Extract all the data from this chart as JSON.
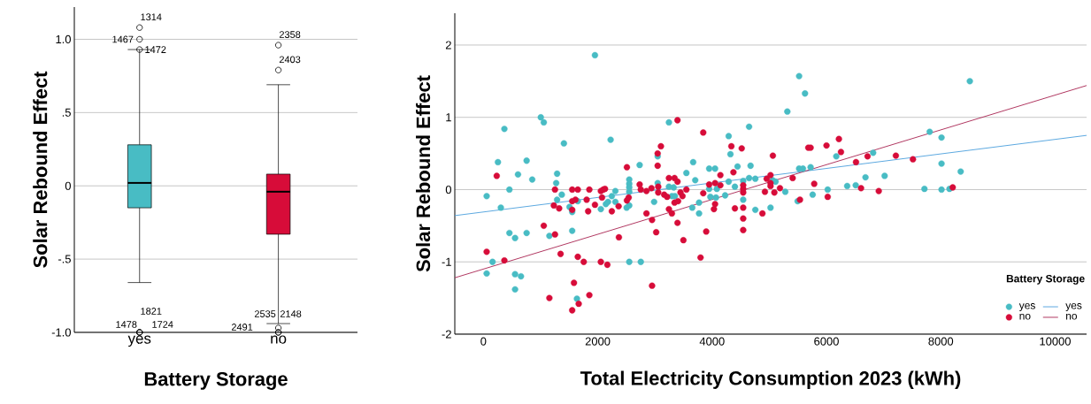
{
  "chart_data": [
    {
      "type": "box",
      "xlabel": "Battery Storage",
      "ylabel": "Solar Rebound Effect",
      "categories": [
        "yes",
        "no"
      ],
      "colors": [
        "#48bcc4",
        "#d70c39"
      ],
      "boxes": [
        {
          "low": -0.66,
          "q1": -0.15,
          "median": 0.02,
          "q3": 0.28,
          "high": 0.93,
          "outliers": [
            1.08,
            1.0,
            0.93,
            -1.0,
            -1.0,
            -1.0
          ]
        },
        {
          "low": -0.94,
          "q1": -0.33,
          "median": -0.04,
          "q3": 0.08,
          "high": 0.69,
          "outliers": [
            0.96,
            0.79,
            -0.97,
            -1.0,
            -1.0
          ]
        }
      ],
      "ylim": [
        -1.0,
        1.22
      ],
      "yticks": [
        {
          "value": -1.0,
          "label": "-1.0"
        },
        {
          "value": -0.5,
          "label": "-.5"
        },
        0,
        {
          "value": 0.5,
          "label": ".5"
        },
        {
          "value": 1.0,
          "label": "1.0"
        }
      ],
      "grid": "y",
      "annotations": [
        "1314",
        "1467",
        "1472",
        "1821",
        "1478",
        "1724",
        "2358",
        "2403",
        "2535",
        "2148",
        "2491"
      ]
    },
    {
      "type": "scatter",
      "xlabel": "Total Electricity Consumption 2023 (kWh)",
      "ylabel": "Solar Rebound Effect",
      "xlim": [
        -500,
        10550
      ],
      "ylim": [
        -2,
        2.44
      ],
      "xticks": [
        0,
        2000,
        4000,
        6000,
        8000,
        10000
      ],
      "yticks": [
        -2,
        -1,
        0,
        1,
        2
      ],
      "grid": "y",
      "legend": "bottom right",
      "legend_title": "Battery Storage",
      "series": [
        {
          "name": "yes",
          "color": "#48bcc4",
          "x": [
            57,
            254,
            367,
            305,
            455,
            160,
            57,
            455,
            554,
            605,
            554,
            554,
            657,
            756,
            756,
            854,
            1004,
            1056,
            1154,
            1289,
            1273,
            1289,
            1371,
            1408,
            1506,
            1553,
            1553,
            1636,
            1651,
            1951,
            2054,
            2142,
            2179,
            2225,
            2246,
            2308,
            2308,
            2505,
            2551,
            2551,
            2551,
            2551,
            2551,
            2551,
            2733,
            2753,
            2986,
            3048,
            3048,
            3245,
            3245,
            3328,
            3297,
            3349,
            3550,
            3669,
            3705,
            3653,
            3772,
            3772,
            3949,
            4052,
            3949,
            3969,
            4068,
            4083,
            4228,
            4290,
            4321,
            4290,
            4399,
            4445,
            4544,
            4544,
            4647,
            4647,
            4673,
            4756,
            4756,
            5022,
            5059,
            5110,
            5280,
            5316,
            5496,
            5522,
            5522,
            5589,
            5625,
            5723,
            5759,
            6022,
            6172,
            6363,
            6512,
            6683,
            6817,
            7018,
            7714,
            7806,
            8013,
            8013,
            8013,
            8152,
            8348,
            8508
          ],
          "values": [
            -0.09,
            0.38,
            0.84,
            -0.25,
            0,
            -1.0,
            -1.16,
            -0.6,
            -0.67,
            0.21,
            -1.17,
            -1.38,
            -1.2,
            0.4,
            -0.6,
            0.14,
            1.0,
            0.93,
            -0.64,
            0.22,
            0.09,
            -0.14,
            -0.07,
            0.64,
            -0.24,
            -0.31,
            -0.57,
            -1.51,
            -0.16,
            1.86,
            -0.27,
            -0.2,
            -0.17,
            0.69,
            -0.09,
            -0.02,
            -0.17,
            -0.25,
            -0.22,
            0.14,
            0.08,
            0.03,
            -0.03,
            -1.0,
            0.34,
            -1.0,
            -0.17,
            0.46,
            0.09,
            0.93,
            0.04,
            0.03,
            -0.09,
            -0.09,
            0.23,
            0.38,
            0.13,
            -0.25,
            -0.18,
            -0.33,
            0.29,
            0.29,
            0.01,
            -0.1,
            -0.11,
            0.01,
            -0.08,
            0.74,
            0.49,
            0.11,
            0.04,
            0.32,
            0.12,
            -0.14,
            0.87,
            0.16,
            0.33,
            0.15,
            -0.28,
            -0.25,
            0.13,
            0.11,
            -0.03,
            1.08,
            -0.16,
            1.57,
            0.29,
            0.29,
            1.33,
            0.31,
            -0.07,
            0,
            0.46,
            0.05,
            0.06,
            0.17,
            0.51,
            0.19,
            0.01,
            0.8,
            0.72,
            0.36,
            0,
            0.01,
            0.25,
            1.5
          ]
        },
        {
          "name": "no",
          "color": "#d70c39",
          "x": [
            57,
            233,
            367,
            1056,
            1154,
            1252,
            1232,
            1325,
            1252,
            1350,
            1553,
            1553,
            1553,
            1553,
            1584,
            1610,
            1651,
            1651,
            1667,
            1755,
            1806,
            1832,
            1853,
            1853,
            1951,
            2054,
            2054,
            2075,
            2096,
            2127,
            2168,
            2246,
            2365,
            2370,
            2510,
            2510,
            2541,
            2733,
            2753,
            2852,
            2852,
            2940,
            2950,
            2950,
            3022,
            3048,
            3048,
            3058,
            3058,
            3105,
            3162,
            3213,
            3245,
            3245,
            3297,
            3343,
            3395,
            3395,
            3343,
            3405,
            3395,
            3447,
            3483,
            3498,
            3550,
            3798,
            3845,
            3845,
            3897,
            3949,
            4032,
            4052,
            4052,
            4145,
            4145,
            4337,
            4373,
            4399,
            4518,
            4544,
            4544,
            4544,
            4544,
            4544,
            4544,
            4880,
            4924,
            4955,
            5022,
            5022,
            5022,
            5063,
            5089,
            5187,
            5409,
            5537,
            5682,
            5723,
            5786,
            6001,
            6022,
            6218,
            6254,
            6517,
            6605,
            6719,
            6915,
            7214,
            7513,
            8209
          ],
          "values": [
            -0.86,
            0.19,
            -0.98,
            -0.5,
            -1.5,
            0,
            -0.22,
            -0.26,
            -0.62,
            -0.89,
            0,
            -0.16,
            -0.28,
            -1.67,
            -1.29,
            -0.14,
            0,
            -0.93,
            -1.58,
            -1.0,
            -0.14,
            -0.3,
            0,
            -1.46,
            -0.21,
            -0.02,
            -1.0,
            -0.11,
            0,
            0.01,
            -1.04,
            -0.3,
            -0.23,
            -0.66,
            0.31,
            -0.15,
            -0.11,
            0.07,
            0,
            -0.33,
            -0.02,
            0.02,
            -0.42,
            -1.33,
            -0.59,
            0.5,
            0.33,
            0.04,
            -0.04,
            0.6,
            -0.07,
            -0.1,
            0.16,
            -0.27,
            -0.33,
            0.16,
            0.96,
            0.11,
            -0.18,
            -0.16,
            -0.46,
            -0.04,
            -0.09,
            -0.7,
            0,
            -0.94,
            0.79,
            -0.05,
            -0.58,
            0.07,
            -0.27,
            -0.2,
            0.09,
            0.2,
            0.06,
            0.6,
            0.24,
            -0.26,
            0.57,
            0.06,
            0.01,
            -0.04,
            -0.25,
            -0.4,
            -0.56,
            -0.33,
            -0.03,
            0.15,
            0.2,
            0.09,
            0.05,
            0.47,
            -0.04,
            0.02,
            0.16,
            -0.14,
            0.58,
            0.58,
            0.08,
            0.61,
            -0.1,
            0.7,
            0.52,
            0.38,
            0.02,
            0.46,
            -0.02,
            0.47,
            0.42,
            0.03
          ]
        },
        {
          "name": "yes",
          "type": "line",
          "color": "#4a9fdc",
          "x": [
            -500,
            10550
          ],
          "values": [
            -0.36,
            0.75
          ]
        },
        {
          "name": "no",
          "type": "line",
          "color": "#a8214f",
          "x": [
            -500,
            10550
          ],
          "values": [
            -1.22,
            1.44
          ]
        }
      ]
    }
  ]
}
